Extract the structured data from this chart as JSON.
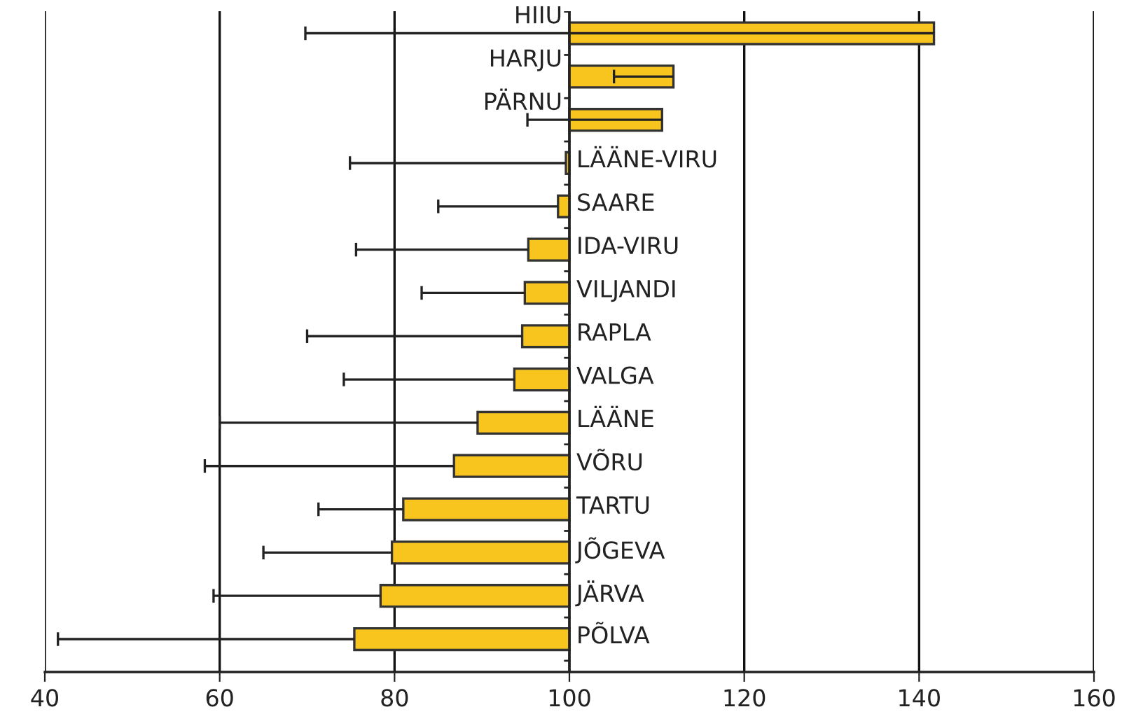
{
  "chart_data": {
    "type": "bar",
    "orientation": "horizontal",
    "categories": [
      "HIIU",
      "HARJU",
      "PÄRNU",
      "LÄÄNE-VIRU",
      "SAARE",
      "IDA-VIRU",
      "VILJANDI",
      "RAPLA",
      "VALGA",
      "LÄÄNE",
      "VÕRU",
      "TARTU",
      "JÕGEVA",
      "JÄRVA",
      "PÕLVA"
    ],
    "base": [
      100,
      100,
      100,
      100,
      100,
      100,
      100,
      100,
      100,
      100,
      100,
      100,
      100,
      100,
      100
    ],
    "values": [
      41.7,
      11.9,
      10.6,
      -0.4,
      -1.3,
      -4.7,
      -5.1,
      -5.4,
      -6.3,
      -10.5,
      -13.2,
      -19.0,
      -20.3,
      -21.6,
      -24.6
    ],
    "errors": [
      [
        69.8,
        141.7
      ],
      [
        105.1,
        111.9
      ],
      [
        95.2,
        110.6
      ],
      [
        74.9,
        99.6
      ],
      [
        85.0,
        98.7
      ],
      [
        75.6,
        95.3
      ],
      [
        83.1,
        94.9
      ],
      [
        70.0,
        94.6
      ],
      [
        74.2,
        93.7
      ],
      [
        60.0,
        89.5
      ],
      [
        58.3,
        86.8
      ],
      [
        71.3,
        81.0
      ],
      [
        65.0,
        79.7
      ],
      [
        59.3,
        78.4
      ],
      [
        41.5,
        75.4
      ]
    ],
    "color": "#f8c51f",
    "xlim": [
      40,
      160
    ],
    "xticks": [
      40,
      60,
      80,
      100,
      120,
      140,
      160
    ],
    "grid": "x"
  }
}
